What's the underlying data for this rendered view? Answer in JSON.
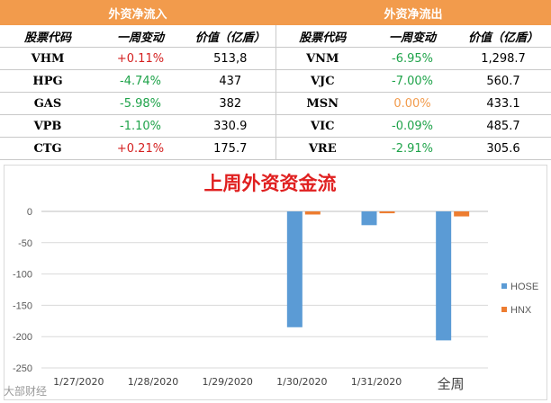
{
  "inflow": {
    "section_title": "外资净流入",
    "col_code": "股票代码",
    "col_change": "一周变动",
    "col_value": "价值（亿盾）",
    "rows": [
      {
        "code": "VHM",
        "change": "+0.11%",
        "dir": "pos",
        "value": "513,8"
      },
      {
        "code": "HPG",
        "change": "-4.74%",
        "dir": "neg",
        "value": "437"
      },
      {
        "code": "GAS",
        "change": "-5.98%",
        "dir": "neg",
        "value": "382"
      },
      {
        "code": "VPB",
        "change": "-1.10%",
        "dir": "neg",
        "value": "330.9"
      },
      {
        "code": "CTG",
        "change": "+0.21%",
        "dir": "pos",
        "value": "175.7"
      }
    ]
  },
  "outflow": {
    "section_title": "外资净流出",
    "col_code": "股票代码",
    "col_change": "一周变动",
    "col_value": "价值（亿盾）",
    "rows": [
      {
        "code": "VNM",
        "change": "-6.95%",
        "dir": "neg",
        "value": "1,298.7"
      },
      {
        "code": "VJC",
        "change": "-7.00%",
        "dir": "neg",
        "value": "560.7"
      },
      {
        "code": "MSN",
        "change": "0.00%",
        "dir": "zero",
        "value": "433.1"
      },
      {
        "code": "VIC",
        "change": "-0.09%",
        "dir": "neg",
        "value": "485.7"
      },
      {
        "code": "VRE",
        "change": "-2.91%",
        "dir": "neg",
        "value": "305.6"
      }
    ]
  },
  "colors": {
    "header_bg": "#f29b4c",
    "positive": "#d42020",
    "negative": "#1fa34a",
    "neutral": "#f29b4c",
    "hose": "#5b9bd5",
    "hnx": "#ed7d31",
    "title": "#e02020"
  },
  "chart_data": {
    "type": "bar",
    "title": "上周外资资金流",
    "categories": [
      "1/27/2020",
      "1/28/2020",
      "1/29/2020",
      "1/30/2020",
      "1/31/2020",
      "全周"
    ],
    "series": [
      {
        "name": "HOSE",
        "values": [
          0,
          0,
          0,
          -185,
          -22,
          -206
        ]
      },
      {
        "name": "HNX",
        "values": [
          0,
          0,
          0,
          -5,
          -3,
          -8
        ]
      }
    ],
    "yticks": [
      0,
      -50,
      -100,
      -150,
      -200,
      -250
    ],
    "ylim": [
      -250,
      0
    ],
    "xlabel": "",
    "ylabel": "",
    "legend": "right",
    "grid": true
  },
  "watermark": "大部财经"
}
